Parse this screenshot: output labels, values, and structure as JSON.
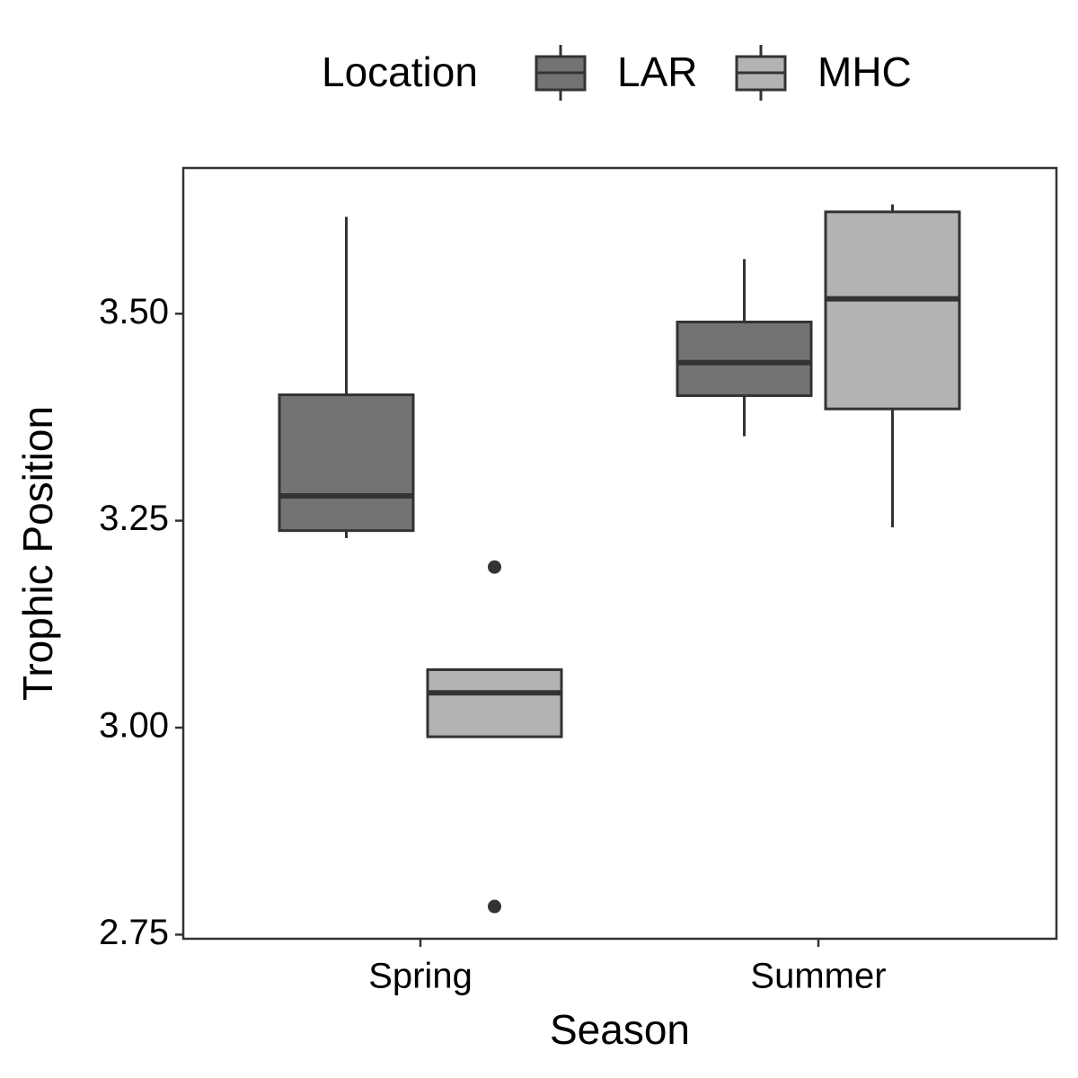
{
  "chart_data": {
    "type": "box",
    "x_label": "Season",
    "y_label": "Trophic Position",
    "legend_title": "Location",
    "legend_position": "top",
    "categories": [
      "Spring",
      "Summer"
    ],
    "series": [
      {
        "name": "LAR",
        "color": "#737373",
        "whisker_low": [
          3.229,
          3.352
        ],
        "q1": [
          3.238,
          3.401
        ],
        "median": [
          3.28,
          3.441
        ],
        "q3": [
          3.402,
          3.49
        ],
        "whisker_high": [
          3.617,
          3.566
        ],
        "outliers": [
          [],
          []
        ]
      },
      {
        "name": "MHC",
        "color": "#b3b3b3",
        "whisker_low": [
          2.989,
          3.242
        ],
        "q1": [
          2.989,
          3.385
        ],
        "median": [
          3.042,
          3.518
        ],
        "q3": [
          3.07,
          3.623
        ],
        "whisker_high": [
          3.07,
          3.632
        ],
        "outliers": [
          [
            3.194,
            2.784
          ],
          []
        ]
      }
    ],
    "ylim": [
      2.745,
      3.676
    ],
    "yticks": [
      2.75,
      {
        "value": 3.0,
        "label": "3.00"
      },
      3.25,
      {
        "value": 3.5,
        "label": "3.50"
      }
    ],
    "grid": false
  }
}
